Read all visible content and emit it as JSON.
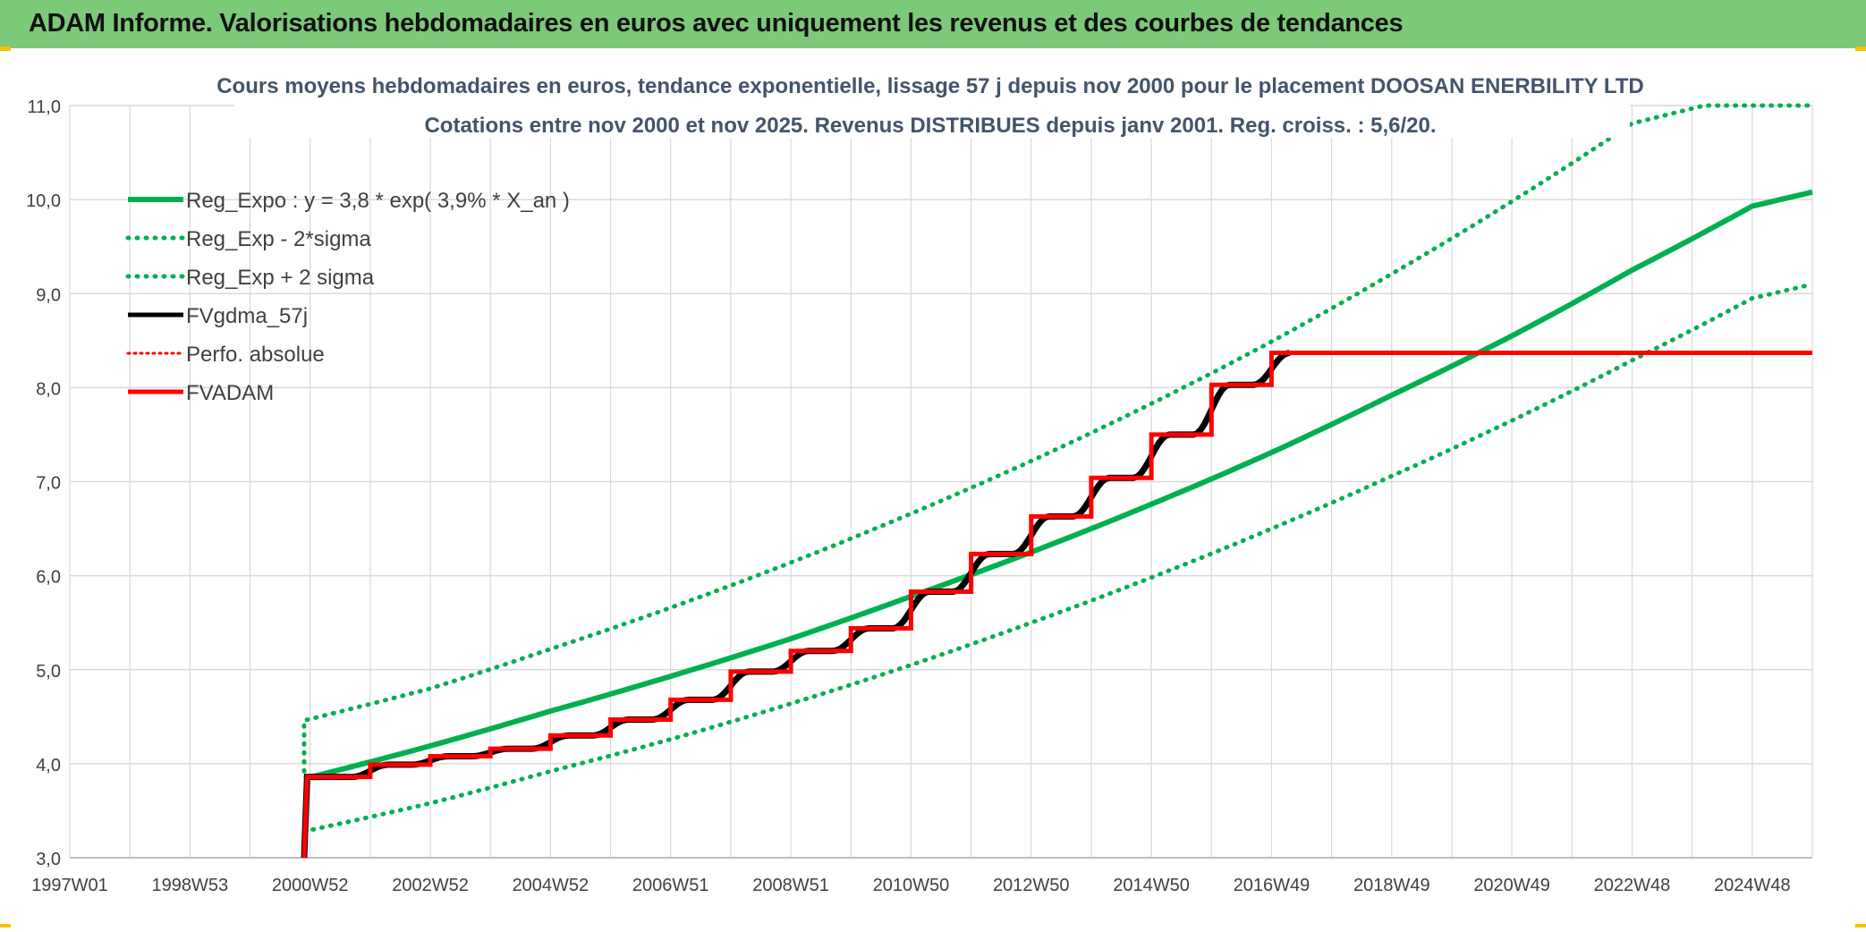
{
  "banner": {
    "title": "ADAM Informe. Valorisations hebdomadaires en euros avec uniquement les revenus et des courbes de tendances"
  },
  "colors": {
    "banner": "#7dc97a",
    "reg": "#00b050",
    "fv": "#000000",
    "adam": "#ff0000",
    "perfo": "#ff0000",
    "grid": "#d9d9d9"
  },
  "chart_data": {
    "type": "line",
    "title_line1": "Cours moyens hebdomadaires en euros, tendance exponentielle, lissage 57 j depuis nov 2000 pour le placement DOOSAN ENERBILITY LTD",
    "title_line2": "Cotations entre nov 2000 et nov 2025. Revenus DISTRIBUES depuis janv 2001. Reg. croiss. : 5,6/20.",
    "xlabel": "",
    "ylabel": "",
    "x_ticks": [
      "1997W01",
      "1998W53",
      "2000W52",
      "2002W52",
      "2004W52",
      "2006W51",
      "2008W51",
      "2010W50",
      "2012W50",
      "2014W50",
      "2016W49",
      "2018W49",
      "2020W49",
      "2022W48",
      "2024W48"
    ],
    "x_range": [
      1997.0,
      2026.0
    ],
    "y_ticks": [
      "3,0",
      "4,0",
      "5,0",
      "6,0",
      "7,0",
      "8,0",
      "9,0",
      "10,0",
      "11,0"
    ],
    "ylim": [
      3.0,
      11.0
    ],
    "grid": true,
    "legend_position": "top-left",
    "legend": [
      {
        "label": "Reg_Expo : y = 3,8 * exp( 3,9% *  X_an )",
        "style": "reg"
      },
      {
        "label": "Reg_Exp - 2*sigma",
        "style": "reg-dotted"
      },
      {
        "label": "Reg_Exp + 2 sigma",
        "style": "reg-dotted"
      },
      {
        "label": "FVgdma_57j",
        "style": "fv"
      },
      {
        "label": "Perfo. absolue",
        "style": "perfo-dotted"
      },
      {
        "label": "FVADAM",
        "style": "adam"
      }
    ],
    "series": [
      {
        "name": "Reg_Expo : y = 3,8 * exp( 3,9% *  X_an )",
        "x": [
          2000.9,
          2003.0,
          2005.0,
          2007.0,
          2009.0,
          2011.0,
          2013.0,
          2015.0,
          2017.0,
          2019.0,
          2021.0,
          2023.0,
          2025.0,
          2026.0
        ],
        "y": [
          3.84,
          4.19,
          4.56,
          4.93,
          5.33,
          5.78,
          6.25,
          6.76,
          7.31,
          7.92,
          8.55,
          9.25,
          9.93,
          10.08
        ]
      },
      {
        "name": "Reg_Exp - 2*sigma",
        "x": [
          2000.9,
          2003.0,
          2005.0,
          2007.0,
          2009.0,
          2011.0,
          2013.0,
          2015.0,
          2017.0,
          2019.0,
          2021.0,
          2023.0,
          2025.0,
          2026.0
        ],
        "y": [
          3.28,
          3.58,
          3.92,
          4.26,
          4.64,
          5.05,
          5.5,
          5.98,
          6.5,
          7.06,
          7.65,
          8.29,
          8.95,
          9.1
        ]
      },
      {
        "name": "Reg_Exp + 2 sigma",
        "x": [
          2000.9,
          2000.9,
          2003.0,
          2005.0,
          2007.0,
          2009.0,
          2011.0,
          2013.0,
          2015.0,
          2017.0,
          2019.0,
          2021.0,
          2023.0,
          2024.2,
          2026.0
        ],
        "y": [
          3.92,
          4.46,
          4.8,
          5.22,
          5.66,
          6.14,
          6.66,
          7.22,
          7.83,
          8.49,
          9.21,
          9.98,
          10.81,
          11.0,
          11.0
        ]
      },
      {
        "name": "FVADAM",
        "steps": {
          "start_x": 2000.9,
          "jump_width": 0.3,
          "points": [
            [
              2000.9,
              3.0
            ],
            [
              2001.0,
              3.86
            ],
            [
              2002.0,
              3.99
            ],
            [
              2003.0,
              4.08
            ],
            [
              2004.0,
              4.16
            ],
            [
              2005.0,
              4.3
            ],
            [
              2006.0,
              4.47
            ],
            [
              2007.0,
              4.68
            ],
            [
              2008.0,
              4.98
            ],
            [
              2009.0,
              5.2
            ],
            [
              2010.0,
              5.44
            ],
            [
              2011.0,
              5.83
            ],
            [
              2012.0,
              6.23
            ],
            [
              2013.0,
              6.63
            ],
            [
              2014.0,
              7.04
            ],
            [
              2015.0,
              7.5
            ],
            [
              2016.0,
              8.03
            ],
            [
              2017.0,
              8.37
            ]
          ],
          "end_x": 2026.0
        }
      },
      {
        "name": "FVgdma_57j",
        "follows": "FVADAM",
        "end_x": 2017.3
      }
    ]
  }
}
